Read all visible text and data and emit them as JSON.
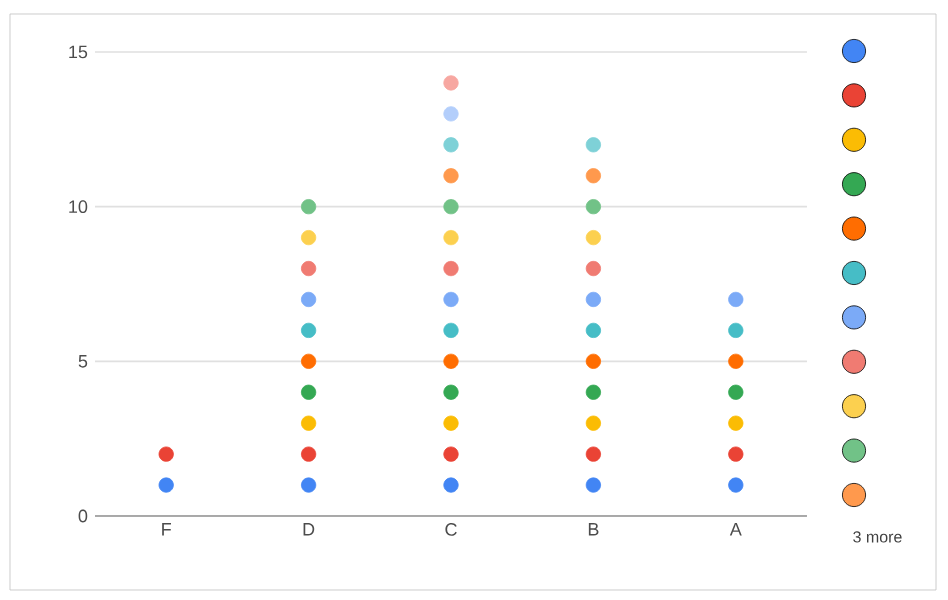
{
  "chart_data": {
    "type": "scatter",
    "categories": [
      "F",
      "D",
      "C",
      "B",
      "A"
    ],
    "series": [
      {
        "color": "#4285f4",
        "values": [
          1,
          1,
          1,
          1,
          1
        ]
      },
      {
        "color": "#ea4335",
        "values": [
          2,
          2,
          2,
          2,
          2
        ]
      },
      {
        "color": "#fbbc04",
        "values": [
          null,
          3,
          3,
          3,
          3
        ]
      },
      {
        "color": "#34a853",
        "values": [
          null,
          4,
          4,
          4,
          4
        ]
      },
      {
        "color": "#ff6d01",
        "values": [
          null,
          5,
          5,
          5,
          5
        ]
      },
      {
        "color": "#46bdc6",
        "values": [
          null,
          6,
          6,
          6,
          6
        ]
      },
      {
        "color": "#7baaf7",
        "values": [
          null,
          7,
          7,
          7,
          7
        ]
      },
      {
        "color": "#f07b72",
        "values": [
          null,
          8,
          8,
          8,
          null
        ]
      },
      {
        "color": "#fcd04f",
        "values": [
          null,
          9,
          9,
          9,
          null
        ]
      },
      {
        "color": "#71c287",
        "values": [
          null,
          10,
          10,
          10,
          null
        ]
      },
      {
        "color": "#ff994d",
        "values": [
          null,
          null,
          11,
          11,
          null
        ]
      },
      {
        "color": "#7ed1d7",
        "values": [
          null,
          null,
          12,
          12,
          null
        ]
      },
      {
        "color": "#b3cefb",
        "values": [
          null,
          null,
          13,
          null,
          null
        ]
      },
      {
        "color": "#f7a7a1",
        "values": [
          null,
          null,
          14,
          null,
          null
        ]
      }
    ],
    "ylim": [
      0,
      15
    ],
    "yticks": [
      0,
      5,
      10,
      15
    ],
    "grid": "y",
    "marker": "circle",
    "annotations": [
      "3 more"
    ]
  }
}
